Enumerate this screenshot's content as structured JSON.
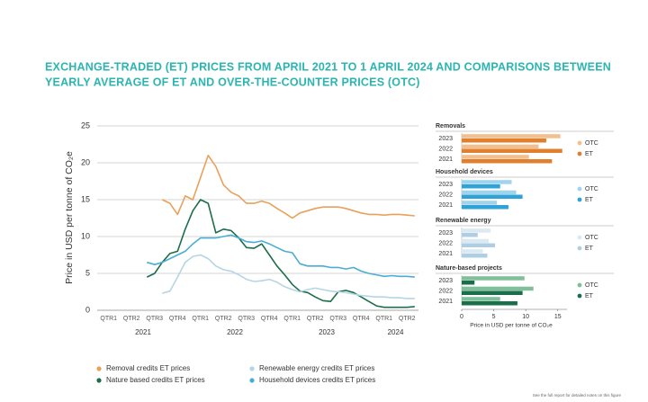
{
  "title": [
    "EXCHANGE-TRADED (ET) PRICES FROM APRIL 2021 TO 1 APRIL 2024 AND COMPARISONS BETWEEN",
    "YEARLY AVERAGE OF ET AND OVER-THE-COUNTER PRICES (OTC)"
  ],
  "footnote": "See the full report for detailed notes on this figure",
  "chart_data": [
    {
      "type": "line",
      "ylabel": "Price in USD per tonne of CO₂e",
      "categories": [
        null,
        "QTR1",
        null,
        null,
        "QTR2",
        null,
        null,
        "QTR3",
        null,
        null,
        "QTR4",
        null,
        null,
        "QTR1",
        null,
        null,
        "QTR2",
        null,
        null,
        "QTR3",
        null,
        null,
        "QTR4",
        null,
        null,
        "QTR1",
        null,
        null,
        "QTR2",
        null,
        null,
        "QTR3",
        null,
        null,
        "QTR4",
        null,
        null,
        "QTR1",
        null,
        null,
        "QTR2",
        null
      ],
      "year_labels": [
        "2021",
        "2022",
        "2023",
        "2024"
      ],
      "ylim": [
        0,
        25
      ],
      "yticks": [
        0,
        5,
        10,
        15,
        20,
        25
      ],
      "grid": true,
      "series": [
        {
          "name": "Removal credits ET prices",
          "color": "#e8a15a",
          "values": [
            null,
            null,
            null,
            null,
            null,
            null,
            null,
            null,
            15,
            14.5,
            13,
            15.5,
            15,
            18,
            21,
            19.5,
            17,
            16,
            15.5,
            14.5,
            14.5,
            14.8,
            14.5,
            13.8,
            13.2,
            12.5,
            13.2,
            13.5,
            13.8,
            14,
            14,
            14,
            13.8,
            13.5,
            13.2,
            13,
            13,
            12.9,
            13,
            13,
            12.9,
            12.8
          ]
        },
        {
          "name": "Nature based credits ET prices",
          "color": "#1b6e4a",
          "values": [
            null,
            null,
            null,
            null,
            null,
            null,
            4.5,
            5,
            6.5,
            7.7,
            8,
            11,
            13.5,
            15,
            14.5,
            10.5,
            11,
            10.8,
            9.8,
            8.5,
            8.4,
            9,
            7.5,
            6,
            4.8,
            3.5,
            2.6,
            2.4,
            1.8,
            1.3,
            1.2,
            2.5,
            2.7,
            2.4,
            1.8,
            1.2,
            0.6,
            0.4,
            0.4,
            0.4,
            0.4,
            0.5
          ]
        },
        {
          "name": "Renewable energy credits ET prices",
          "color": "#b5d5e6",
          "values": [
            null,
            null,
            null,
            null,
            null,
            null,
            null,
            null,
            2.3,
            2.6,
            4.5,
            6.5,
            7.3,
            7.5,
            7,
            6,
            5.5,
            5.3,
            4.8,
            4.2,
            3.9,
            4,
            4.2,
            3.8,
            3.2,
            2.8,
            2.5,
            2.8,
            3,
            2.8,
            2.6,
            2.5,
            2.4,
            2.2,
            2,
            1.9,
            1.8,
            1.8,
            1.7,
            1.7,
            1.6,
            1.6
          ]
        },
        {
          "name": "Household devices credits ET prices",
          "color": "#4aaed3",
          "values": [
            null,
            null,
            null,
            null,
            null,
            null,
            6.5,
            6.2,
            6.5,
            7,
            7.5,
            8,
            9,
            9.8,
            9.8,
            9.8,
            10,
            10.2,
            9.8,
            9.3,
            9.2,
            9.4,
            9,
            8.5,
            8,
            7.8,
            6.3,
            6,
            6,
            6,
            5.8,
            5.8,
            5.6,
            5.8,
            5.3,
            5,
            4.8,
            4.6,
            4.7,
            4.6,
            4.6,
            4.5
          ]
        }
      ]
    },
    {
      "type": "bar",
      "orientation": "horizontal",
      "xlabel": "Price in USD per tonne of CO₂e",
      "xlim": [
        0,
        17
      ],
      "xticks": [
        0,
        5,
        10,
        15
      ],
      "panels": [
        {
          "title": "Removals",
          "categories": [
            "2023",
            "2022",
            "2021"
          ],
          "series": [
            {
              "name": "OTC",
              "color": "#f2c08e",
              "values": [
                15.4,
                12,
                10.5
              ]
            },
            {
              "name": "ET",
              "color": "#e07f2e",
              "values": [
                13.2,
                15.7,
                14.1
              ]
            }
          ]
        },
        {
          "title": "Household devices",
          "categories": [
            "2023",
            "2022",
            "2021"
          ],
          "series": [
            {
              "name": "OTC",
              "color": "#9fd4ec",
              "values": [
                7.8,
                8.5,
                5.5
              ]
            },
            {
              "name": "ET",
              "color": "#2fa3d8",
              "values": [
                6,
                9.5,
                7.3
              ]
            }
          ]
        },
        {
          "title": "Renewable energy",
          "categories": [
            "2023",
            "2022",
            "2021"
          ],
          "series": [
            {
              "name": "OTC",
              "color": "#dbe9f2",
              "values": [
                4.5,
                4.2,
                3.3
              ]
            },
            {
              "name": "ET",
              "color": "#aecfe3",
              "values": [
                2.5,
                5.2,
                4
              ]
            }
          ]
        },
        {
          "title": "Nature-based projects",
          "categories": [
            "2023",
            "2022",
            "2021"
          ],
          "series": [
            {
              "name": "OTC",
              "color": "#7fbf9a",
              "values": [
                9.8,
                11.2,
                6
              ]
            },
            {
              "name": "ET",
              "color": "#1b6e4a",
              "values": [
                2,
                9.5,
                8.7
              ]
            }
          ]
        }
      ]
    }
  ]
}
